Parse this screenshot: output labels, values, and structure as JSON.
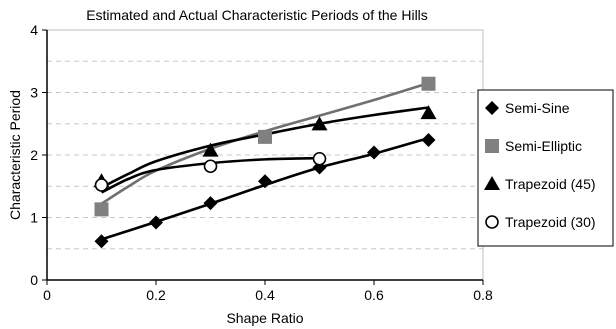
{
  "chart_data": {
    "type": "scatter",
    "title": "Estimated and Actual Characteristic Periods of the Hills",
    "xlabel": "Shape Ratio",
    "ylabel": "Characteristic Period",
    "xlim": [
      0,
      0.8
    ],
    "ylim": [
      0,
      4
    ],
    "xticks": [
      "0",
      "0.2",
      "0.4",
      "0.6",
      "0.8"
    ],
    "yticks": [
      "0",
      "1",
      "2",
      "3",
      "4"
    ],
    "grid": "horizontal dashed",
    "legend_position": "right",
    "series": [
      {
        "name": "Semi-Sine",
        "marker": "diamond",
        "marker_color": "#000000",
        "line_color": "#000000",
        "x": [
          0.1,
          0.2,
          0.3,
          0.4,
          0.5,
          0.6,
          0.7
        ],
        "y": [
          0.62,
          0.92,
          1.23,
          1.58,
          1.8,
          2.04,
          2.24
        ],
        "fit_x": [
          0.1,
          0.2,
          0.3,
          0.4,
          0.5,
          0.6,
          0.7
        ],
        "fit_y": [
          0.65,
          0.93,
          1.22,
          1.52,
          1.8,
          2.02,
          2.27
        ]
      },
      {
        "name": "Semi-Elliptic",
        "marker": "square",
        "marker_color": "#808080",
        "line_color": "#707070",
        "x": [
          0.1,
          0.4,
          0.7
        ],
        "y": [
          1.13,
          2.29,
          3.14
        ],
        "fit_x": [
          0.1,
          0.15,
          0.2,
          0.3,
          0.4,
          0.5,
          0.6,
          0.7
        ],
        "fit_y": [
          1.22,
          1.5,
          1.75,
          2.1,
          2.38,
          2.63,
          2.88,
          3.15
        ]
      },
      {
        "name": "Trapezoid (45)",
        "marker": "triangle",
        "marker_color": "#000000",
        "line_color": "#000000",
        "x": [
          0.1,
          0.3,
          0.5,
          0.7
        ],
        "y": [
          1.58,
          2.07,
          2.49,
          2.67
        ],
        "fit_x": [
          0.1,
          0.15,
          0.2,
          0.3,
          0.4,
          0.5,
          0.6,
          0.7
        ],
        "fit_y": [
          1.48,
          1.7,
          1.9,
          2.15,
          2.33,
          2.5,
          2.64,
          2.76
        ]
      },
      {
        "name": "Trapezoid (30)",
        "marker": "open-circle",
        "marker_color": "#000000",
        "line_color": "#000000",
        "x": [
          0.1,
          0.3,
          0.5
        ],
        "y": [
          1.52,
          1.82,
          1.94
        ],
        "fit_x": [
          0.1,
          0.15,
          0.2,
          0.3,
          0.4,
          0.5
        ],
        "fit_y": [
          1.4,
          1.62,
          1.76,
          1.87,
          1.93,
          1.95
        ]
      }
    ]
  }
}
